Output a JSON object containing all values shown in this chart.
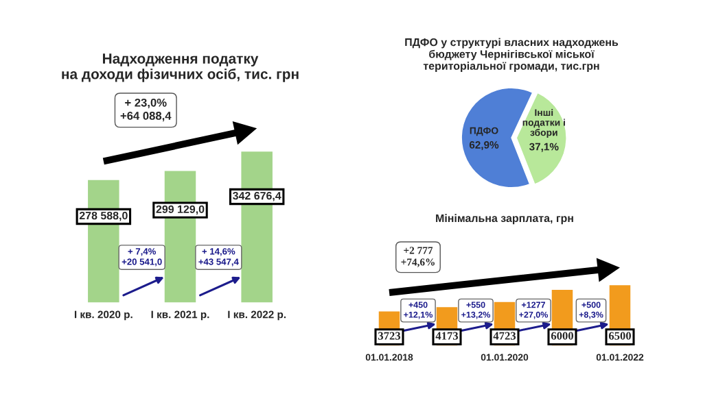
{
  "chart_data": [
    {
      "type": "bar",
      "title": "Надходження податку\nна доходи фізичних осіб, тис. грн",
      "categories": [
        "I кв. 2020 р.",
        "I кв. 2021 р.",
        "I кв. 2022 р."
      ],
      "values": [
        278588.0,
        299129.0,
        342676.4
      ],
      "value_labels": [
        "278 588,0",
        "299 129,0",
        "342 676,4"
      ],
      "color": "#a3d48a",
      "tick_labels": "x",
      "annotations": [
        "+ 23,0%\n+64 088,4",
        "+ 7,4%\n+20 541,0",
        "+ 14,6%\n+43 547,4"
      ]
    },
    {
      "type": "pie",
      "title": "ПДФО у структурі власних надходжень\nбюджету Чернігівської міської\nтериторіальної громади, тис.грн",
      "categories": [
        "ПДФО",
        "Інші\nподатки і\nзбори"
      ],
      "values": [
        62.9,
        37.1
      ],
      "value_labels": [
        "62,9%",
        "37,1%"
      ],
      "colors": [
        "#4f7fd6",
        "#b8e89a"
      ]
    },
    {
      "type": "bar",
      "title": "Мінімальна зарплата, грн",
      "categories": [
        "01.01.2018",
        null,
        "01.01.2020",
        null,
        "01.01.2022"
      ],
      "values": [
        3723,
        4173,
        4723,
        6000,
        6500
      ],
      "data_labels": true,
      "color": "#f29b1d",
      "tick_labels": "x",
      "annotations": [
        "+2 777\n+74,6%",
        "+450\n+12,1%",
        "+550\n+13,2%",
        "+1277\n+27,0%",
        "+500\n+8,3%"
      ]
    }
  ]
}
